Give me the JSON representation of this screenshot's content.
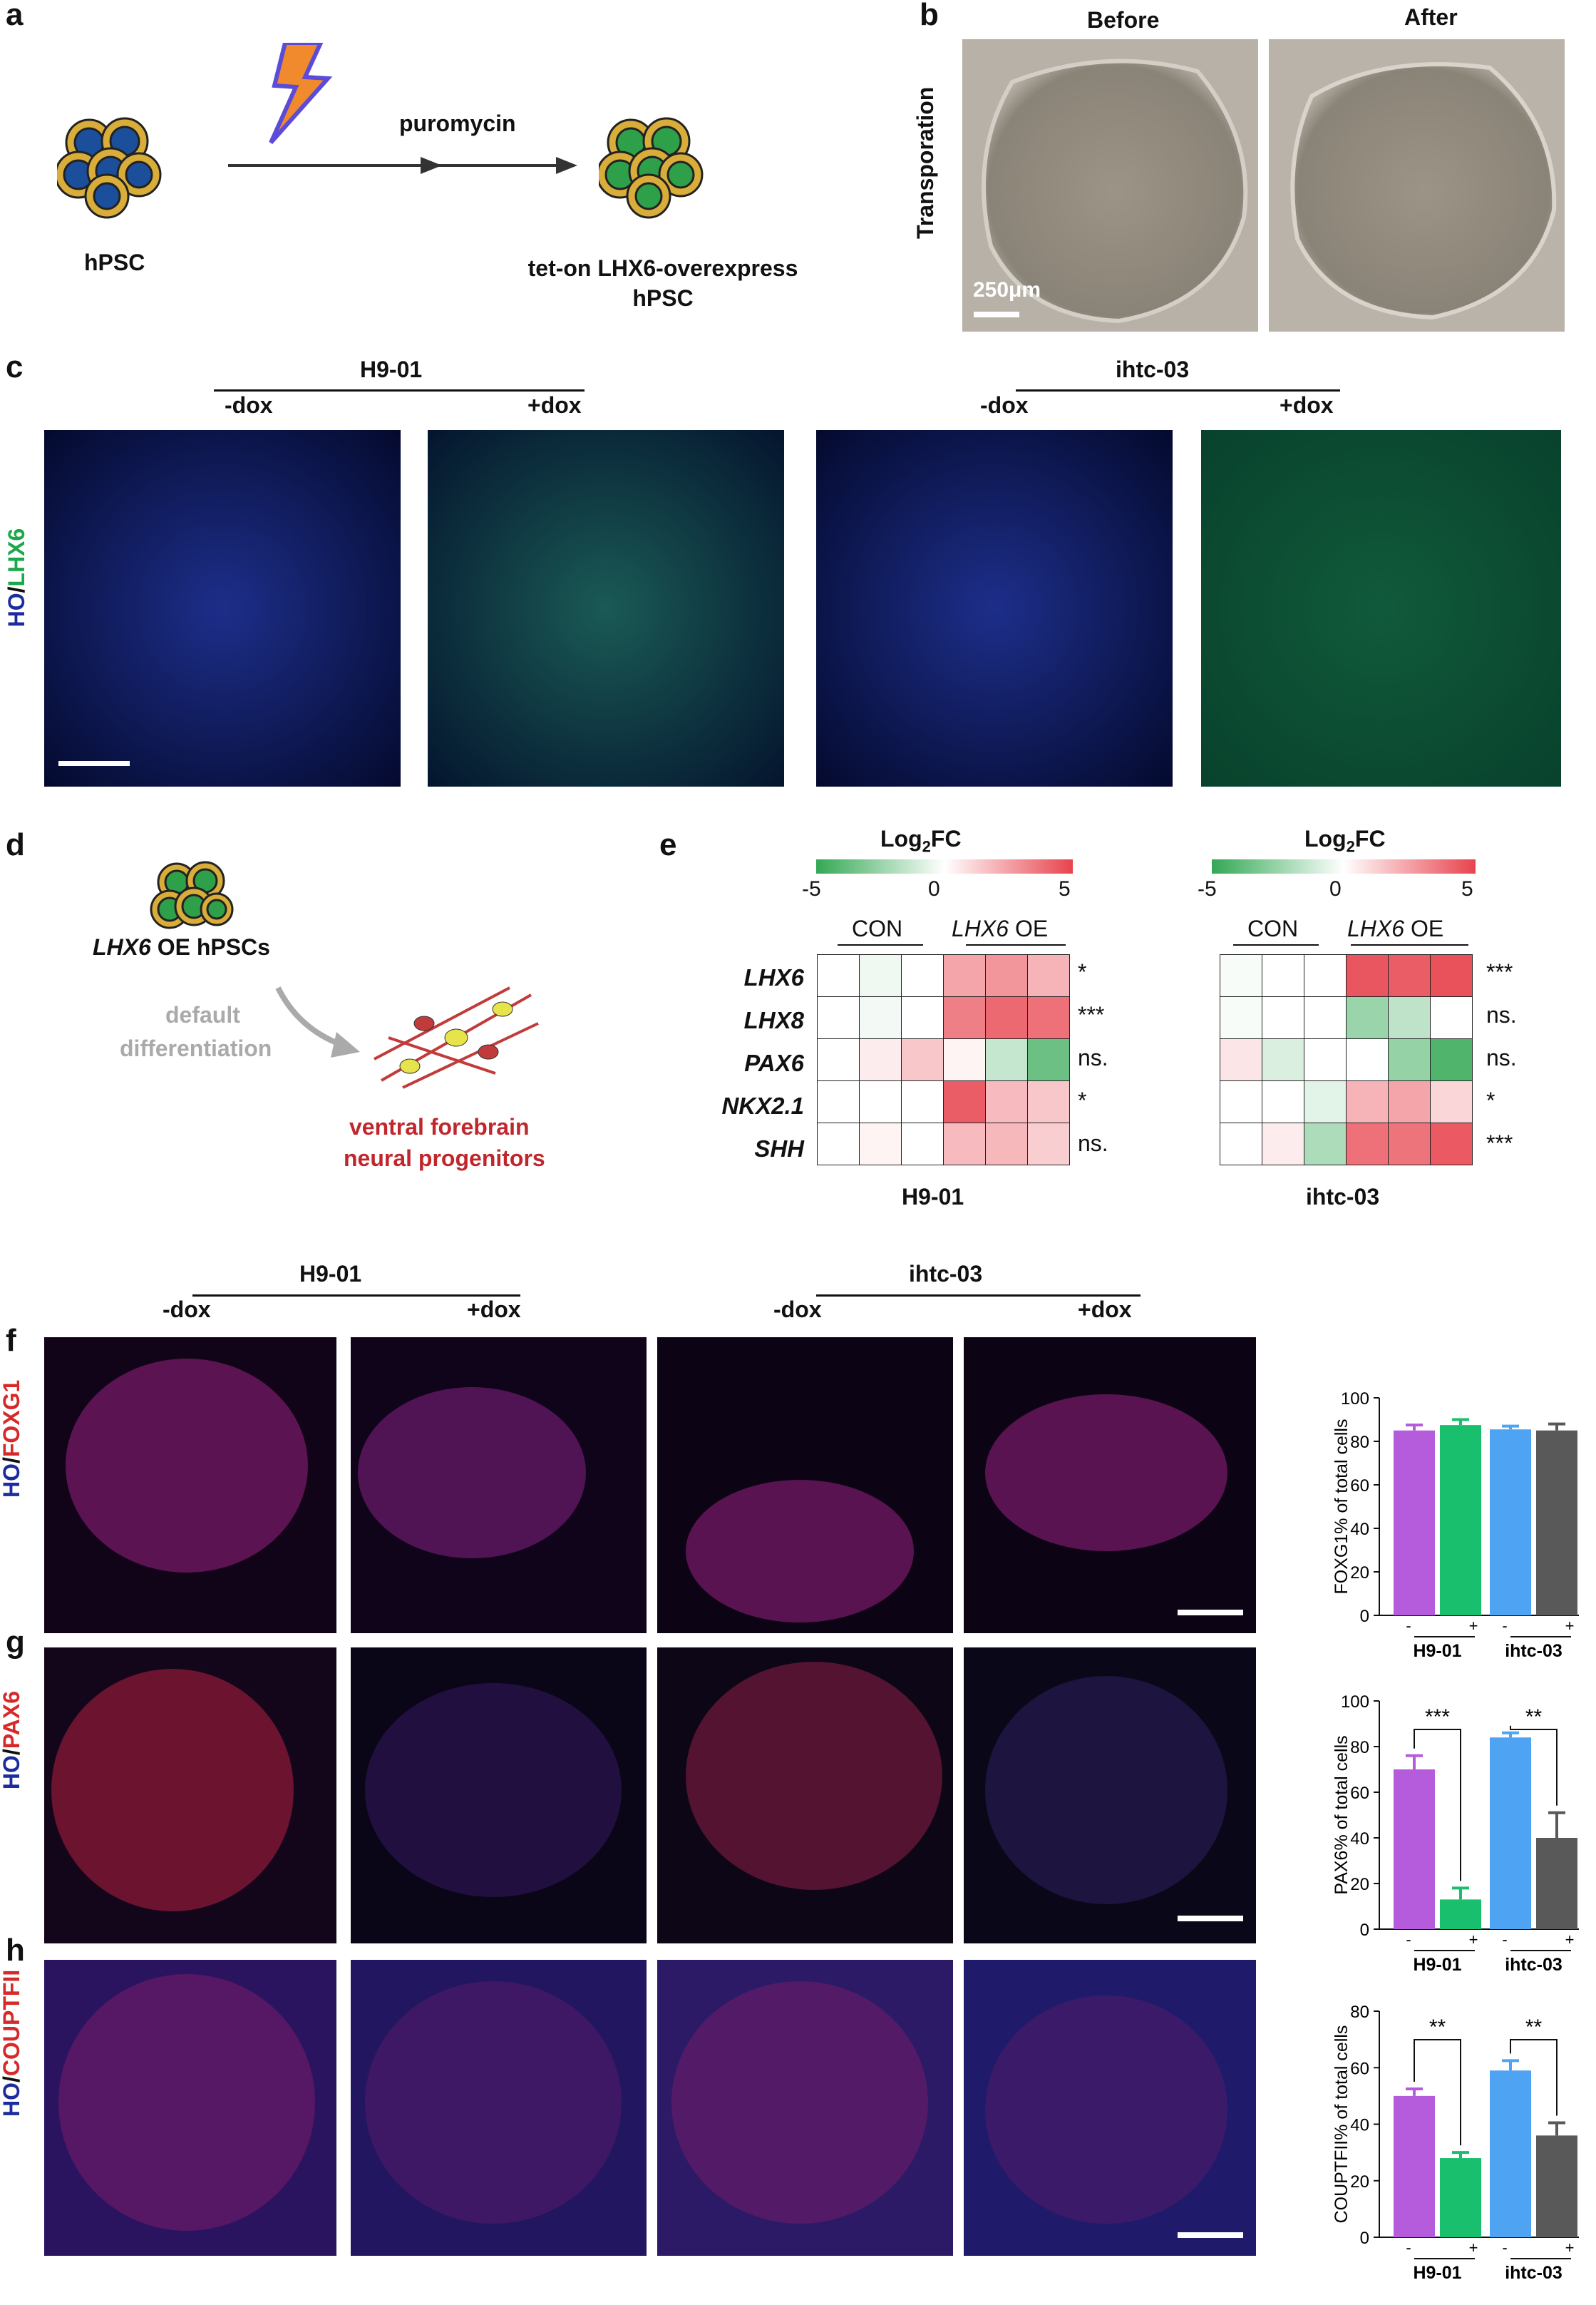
{
  "panels": {
    "a": "a",
    "b": "b",
    "c": "c",
    "d": "d",
    "e": "e",
    "f": "f",
    "g": "g",
    "h": "h"
  },
  "a": {
    "left_label": "hPSC",
    "arrow_label": "puromycin",
    "right_label_1": "tet-on LHX6-overexpress",
    "right_label_2": "hPSC"
  },
  "b": {
    "before": "Before",
    "after": "After",
    "ylabel": "Transporation",
    "scale": "250μm"
  },
  "c": {
    "line1": "H9-01",
    "line2": "ihtc-03",
    "minus": "-dox",
    "plus": "+dox",
    "ylabel_ho": "HO",
    "ylabel_sep": "/",
    "ylabel_marker": "LHX6"
  },
  "d": {
    "gene": "LHX6",
    "cells": " OE hPSCs",
    "arrow_1": "default",
    "arrow_2": "differentiation",
    "target_1": "ventral forebrain",
    "target_2": "neural progenitors"
  },
  "e": {
    "title_main": "Log",
    "title_sub": "2",
    "title_end": "FC",
    "scale_min": "-5",
    "scale_mid": "0",
    "scale_max": "5",
    "con": "CON",
    "oe_gene": "LHX6",
    "oe_rest": " OE",
    "genes": [
      "LHX6",
      "LHX8",
      "PAX6",
      "NKX2.1",
      "SHH"
    ],
    "h9_label": "H9-01",
    "ihtc_label": "ihtc-03",
    "h9_sig": [
      "*",
      "***",
      "ns.",
      "*",
      "ns."
    ],
    "ihtc_sig": [
      "***",
      "ns.",
      "ns.",
      "*",
      "***"
    ],
    "h9_values": [
      [
        0,
        -0.4,
        0,
        2.4,
        2.8,
        2.0
      ],
      [
        0,
        -0.3,
        0,
        3.4,
        4.0,
        3.8
      ],
      [
        0,
        0.5,
        1.5,
        0.3,
        -1.4,
        -3.6
      ],
      [
        0,
        0,
        0,
        4.3,
        1.8,
        1.5
      ],
      [
        0,
        0.3,
        0,
        1.8,
        1.9,
        1.3
      ]
    ],
    "ihtc_values": [
      [
        -0.2,
        0,
        0,
        4.5,
        4.3,
        4.6
      ],
      [
        -0.2,
        0,
        0,
        -2.5,
        -1.6,
        0
      ],
      [
        0.7,
        -0.9,
        0,
        0,
        -2.6,
        -4.3
      ],
      [
        0,
        0,
        -0.7,
        2.0,
        2.4,
        1.1
      ],
      [
        0,
        0.5,
        -2.0,
        3.8,
        3.7,
        4.4
      ]
    ]
  },
  "f": {
    "line1": "H9-01",
    "line2": "ihtc-03",
    "minus": "-dox",
    "plus": "+dox",
    "ylabel_ho": "HO",
    "ylabel_marker": "FOXG1"
  },
  "g": {
    "ylabel_ho": "HO",
    "ylabel_marker": "PAX6"
  },
  "h": {
    "ylabel_ho": "HO",
    "ylabel_marker": "COUPTFII"
  },
  "colors": {
    "magenta": "#B45CDB",
    "green": "#1ABF6E",
    "blue": "#4EA4F2",
    "gray": "#595959",
    "heat_pos": "#E8434D",
    "heat_neg": "#33A854"
  },
  "chart_data": [
    {
      "type": "bar",
      "ylabel": "FOXG1% of total cells",
      "ylim": [
        0,
        100
      ],
      "yticks": [
        "0",
        "20",
        "40",
        "60",
        "80",
        "100"
      ],
      "categories": [
        "-",
        "+",
        "-",
        "+"
      ],
      "groups": [
        "H9-01",
        "ihtc-03"
      ],
      "values": [
        85,
        87.5,
        85.5,
        85
      ],
      "errors": [
        2.5,
        2.5,
        1.5,
        3
      ],
      "sig": []
    },
    {
      "type": "bar",
      "ylabel": "PAX6% of total cells",
      "ylim": [
        0,
        100
      ],
      "yticks": [
        "0",
        "20",
        "40",
        "60",
        "80",
        "100"
      ],
      "categories": [
        "-",
        "+",
        "-",
        "+"
      ],
      "groups": [
        "H9-01",
        "ihtc-03"
      ],
      "values": [
        70,
        13,
        84,
        40
      ],
      "errors": [
        6,
        5,
        2,
        11
      ],
      "sig": [
        "***",
        "**"
      ]
    },
    {
      "type": "bar",
      "ylabel": "COUPTFII% of total cells",
      "ylim": [
        0,
        80
      ],
      "yticks": [
        "0",
        "20",
        "40",
        "60",
        "80"
      ],
      "categories": [
        "-",
        "+",
        "-",
        "+"
      ],
      "groups": [
        "H9-01",
        "ihtc-03"
      ],
      "values": [
        50,
        28,
        59,
        36
      ],
      "errors": [
        2.5,
        2,
        3.5,
        4.5
      ],
      "sig": [
        "**",
        "**"
      ]
    }
  ]
}
